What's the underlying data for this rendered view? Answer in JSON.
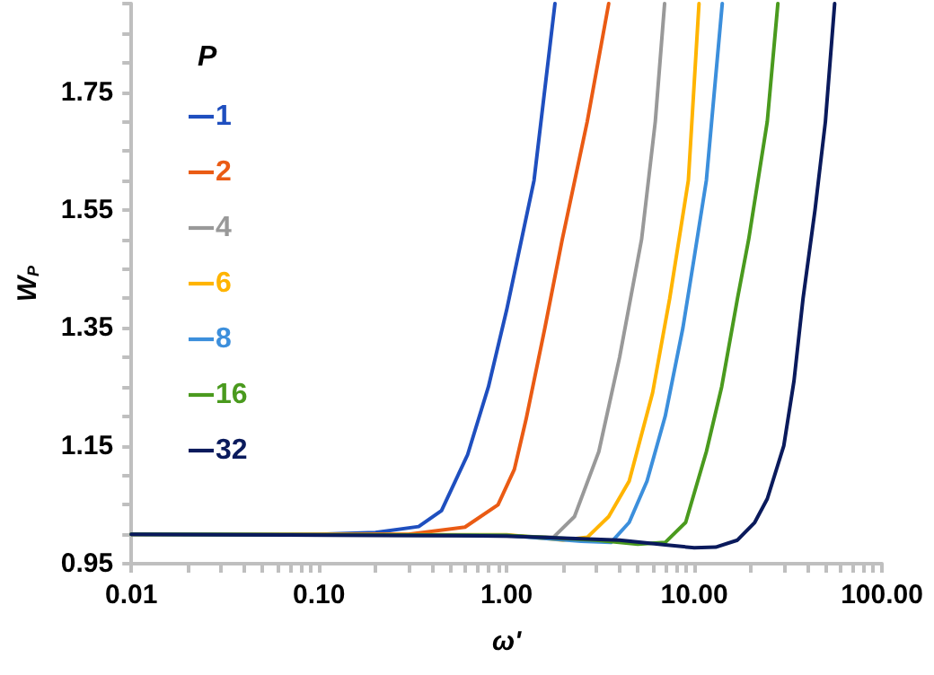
{
  "chart_data": {
    "type": "line",
    "xlabel": "ω'",
    "ylabel": "W$_{P}$",
    "legend_title": "P",
    "legend": "top left",
    "grid": false,
    "marker": "none",
    "line_style": "solid",
    "log": "x",
    "xlim": [
      0.01,
      100
    ],
    "xticks": [
      {
        "value": 0.01,
        "label": "0.01"
      },
      {
        "value": 0.02,
        "label": null
      },
      {
        "value": 0.03,
        "label": null
      },
      {
        "value": 0.04,
        "label": null
      },
      {
        "value": 0.05,
        "label": null
      },
      {
        "value": 0.06,
        "label": null
      },
      {
        "value": 0.07,
        "label": null
      },
      {
        "value": 0.08,
        "label": null
      },
      {
        "value": 0.09,
        "label": null
      },
      {
        "value": 0.1,
        "label": "0.10"
      },
      {
        "value": 0.2,
        "label": null
      },
      {
        "value": 0.3,
        "label": null
      },
      {
        "value": 0.4,
        "label": null
      },
      {
        "value": 0.5,
        "label": null
      },
      {
        "value": 0.6,
        "label": null
      },
      {
        "value": 0.7,
        "label": null
      },
      {
        "value": 0.8,
        "label": null
      },
      {
        "value": 0.9,
        "label": null
      },
      {
        "value": 1,
        "label": "1.00"
      },
      {
        "value": 2,
        "label": null
      },
      {
        "value": 3,
        "label": null
      },
      {
        "value": 4,
        "label": null
      },
      {
        "value": 5,
        "label": null
      },
      {
        "value": 6,
        "label": null
      },
      {
        "value": 7,
        "label": null
      },
      {
        "value": 8,
        "label": null
      },
      {
        "value": 9,
        "label": null
      },
      {
        "value": 10,
        "label": "10.00"
      },
      {
        "value": 20,
        "label": null
      },
      {
        "value": 30,
        "label": null
      },
      {
        "value": 40,
        "label": null
      },
      {
        "value": 50,
        "label": null
      },
      {
        "value": 60,
        "label": null
      },
      {
        "value": 70,
        "label": null
      },
      {
        "value": 80,
        "label": null
      },
      {
        "value": 90,
        "label": null
      },
      {
        "value": 100,
        "label": "100.00"
      }
    ],
    "ylim": [
      0.95,
      1.9
    ],
    "yticks": [
      0.95,
      {
        "value": 1.0,
        "label": null
      },
      {
        "value": 1.05,
        "label": null
      },
      {
        "value": 1.1,
        "label": null
      },
      1.15,
      {
        "value": 1.2,
        "label": null
      },
      {
        "value": 1.25,
        "label": null
      },
      {
        "value": 1.3,
        "label": null
      },
      1.35,
      {
        "value": 1.4,
        "label": null
      },
      {
        "value": 1.45,
        "label": null
      },
      {
        "value": 1.5,
        "label": null
      },
      1.55,
      {
        "value": 1.6,
        "label": null
      },
      {
        "value": 1.65,
        "label": null
      },
      {
        "value": 1.7,
        "label": null
      },
      1.75,
      {
        "value": 1.8,
        "label": null
      },
      {
        "value": 1.85,
        "label": null
      },
      {
        "value": 1.9,
        "label": null
      }
    ],
    "series": [
      {
        "name": "1",
        "color": "#1f4fbf",
        "x": [
          0.01,
          0.1,
          0.2,
          0.34,
          0.45,
          0.62,
          0.8,
          1.0,
          1.4,
          1.81
        ],
        "values": [
          1.0,
          1.0,
          1.003,
          1.013,
          1.04,
          1.135,
          1.25,
          1.38,
          1.6,
          1.9
        ]
      },
      {
        "name": "2",
        "color": "#ea5b14",
        "x": [
          0.01,
          0.3,
          0.6,
          0.9,
          1.1,
          1.27,
          1.6,
          1.98,
          2.69,
          3.5
        ],
        "values": [
          1.0,
          1.0,
          1.012,
          1.05,
          1.11,
          1.195,
          1.35,
          1.5,
          1.7,
          1.9
        ]
      },
      {
        "name": "4",
        "color": "#999999",
        "x": [
          0.01,
          1,
          1.78,
          2.3,
          3.1,
          4,
          5.24,
          6.2,
          6.95
        ],
        "values": [
          1.0,
          0.997,
          0.995,
          1.03,
          1.14,
          1.3,
          1.5,
          1.7,
          1.9
        ]
      },
      {
        "name": "6",
        "color": "#ffb400",
        "x": [
          0.01,
          1,
          2,
          2.7,
          3.5,
          4.5,
          6,
          7.4,
          9.3,
          10.6
        ],
        "values": [
          1.0,
          0.999,
          0.99,
          0.995,
          1.03,
          1.09,
          1.24,
          1.4,
          1.6,
          1.9
        ]
      },
      {
        "name": "8",
        "color": "#3c8fdc",
        "x": [
          0.01,
          1,
          2.5,
          3.6,
          4.5,
          5.6,
          7,
          8.7,
          10,
          11.6,
          14.1
        ],
        "values": [
          1.0,
          0.998,
          0.988,
          0.986,
          1.02,
          1.09,
          1.2,
          1.35,
          1.47,
          1.6,
          1.9
        ]
      },
      {
        "name": "16",
        "color": "#4a9a1e",
        "x": [
          0.01,
          1,
          3,
          5,
          7,
          9,
          11.6,
          14,
          17,
          19.5,
          24.5,
          27.9
        ],
        "values": [
          1.0,
          0.998,
          0.99,
          0.983,
          0.986,
          1.02,
          1.14,
          1.25,
          1.4,
          1.5,
          1.7,
          1.9
        ]
      },
      {
        "name": "32",
        "color": "#0a1a5c",
        "x": [
          0.01,
          1,
          4,
          7,
          10,
          13,
          17,
          21,
          24.5,
          30,
          34,
          38,
          44,
          50,
          56
        ],
        "values": [
          1.0,
          0.997,
          0.99,
          0.982,
          0.977,
          0.978,
          0.99,
          1.02,
          1.06,
          1.15,
          1.26,
          1.4,
          1.55,
          1.7,
          1.9
        ]
      }
    ]
  }
}
